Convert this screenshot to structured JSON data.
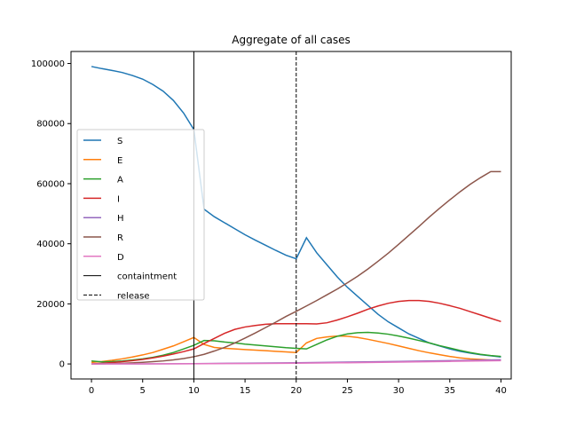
{
  "chart_data": {
    "type": "line",
    "title": "Aggregate of all cases",
    "xlabel": "",
    "ylabel": "",
    "xlim": [
      -2,
      41
    ],
    "ylim": [
      -5000,
      104000
    ],
    "xticks": [
      0,
      5,
      10,
      15,
      20,
      25,
      30,
      35,
      40
    ],
    "yticks": [
      0,
      20000,
      40000,
      60000,
      80000,
      100000
    ],
    "grid": false,
    "legend": "center-left",
    "series": [
      {
        "name": "S",
        "color": "#1f77b4",
        "style": "solid",
        "x": [
          0,
          1,
          2,
          3,
          4,
          5,
          6,
          7,
          8,
          9,
          10,
          11,
          12,
          13,
          14,
          15,
          16,
          17,
          18,
          19,
          20,
          21,
          22,
          23,
          24,
          25,
          26,
          27,
          28,
          29,
          30,
          31,
          32,
          33,
          34,
          35,
          36,
          37,
          38,
          39,
          40
        ],
        "y": [
          99000,
          98300,
          97700,
          97000,
          96000,
          94800,
          93000,
          90800,
          87700,
          83500,
          78000,
          51500,
          49000,
          47000,
          45000,
          43000,
          41200,
          39500,
          37800,
          36200,
          35000,
          42000,
          37000,
          33000,
          29000,
          25500,
          22500,
          19500,
          16500,
          14000,
          12000,
          10000,
          8500,
          7000,
          6000,
          5000,
          4200,
          3600,
          3100,
          2700,
          2300
        ]
      },
      {
        "name": "E",
        "color": "#ff7f0e",
        "style": "solid",
        "x": [
          0,
          1,
          2,
          3,
          4,
          5,
          6,
          7,
          8,
          9,
          10,
          11,
          12,
          13,
          14,
          15,
          16,
          17,
          18,
          19,
          20,
          21,
          22,
          23,
          24,
          25,
          26,
          27,
          28,
          29,
          30,
          31,
          32,
          33,
          34,
          35,
          36,
          37,
          38,
          39,
          40
        ],
        "y": [
          500,
          800,
          1200,
          1700,
          2300,
          3000,
          3800,
          4900,
          6000,
          7400,
          8800,
          6500,
          5500,
          5200,
          5000,
          4800,
          4600,
          4400,
          4200,
          4000,
          3800,
          7000,
          8500,
          9000,
          9300,
          9200,
          8800,
          8200,
          7500,
          6800,
          6000,
          5200,
          4400,
          3700,
          3100,
          2500,
          2000,
          1700,
          1500,
          1300,
          1200
        ]
      },
      {
        "name": "A",
        "color": "#2ca02c",
        "style": "solid",
        "x": [
          0,
          1,
          2,
          3,
          4,
          5,
          6,
          7,
          8,
          9,
          10,
          11,
          12,
          13,
          14,
          15,
          16,
          17,
          18,
          19,
          20,
          21,
          22,
          23,
          24,
          25,
          26,
          27,
          28,
          29,
          30,
          31,
          32,
          33,
          34,
          35,
          36,
          37,
          38,
          39,
          40
        ],
        "y": [
          1000,
          700,
          800,
          1000,
          1300,
          1700,
          2200,
          2900,
          3800,
          5000,
          6200,
          7800,
          7700,
          7300,
          7000,
          6600,
          6300,
          6000,
          5700,
          5400,
          5200,
          5000,
          6500,
          8000,
          9200,
          10000,
          10400,
          10500,
          10300,
          9900,
          9300,
          8600,
          7800,
          7000,
          6100,
          5300,
          4500,
          3800,
          3200,
          2800,
          2500
        ]
      },
      {
        "name": "I",
        "color": "#d62728",
        "style": "solid",
        "x": [
          0,
          1,
          2,
          3,
          4,
          5,
          6,
          7,
          8,
          9,
          10,
          11,
          12,
          13,
          14,
          15,
          16,
          17,
          18,
          19,
          20,
          21,
          22,
          23,
          24,
          25,
          26,
          27,
          28,
          29,
          30,
          31,
          32,
          33,
          34,
          35,
          36,
          37,
          38,
          39,
          40
        ],
        "y": [
          0,
          200,
          450,
          750,
          1100,
          1500,
          2000,
          2600,
          3300,
          4100,
          5000,
          6800,
          8500,
          10200,
          11500,
          12300,
          12800,
          13200,
          13400,
          13400,
          13400,
          13400,
          13300,
          13700,
          14600,
          15700,
          16900,
          18200,
          19300,
          20200,
          20800,
          21100,
          21100,
          20800,
          20200,
          19400,
          18500,
          17400,
          16300,
          15200,
          14100
        ]
      },
      {
        "name": "H",
        "color": "#9467bd",
        "style": "solid",
        "x": [
          0,
          5,
          10,
          15,
          20,
          25,
          30,
          35,
          40
        ],
        "y": [
          0,
          40,
          100,
          250,
          400,
          600,
          850,
          1100,
          1400
        ]
      },
      {
        "name": "R",
        "color": "#8c564b",
        "style": "solid",
        "x": [
          0,
          1,
          2,
          3,
          4,
          5,
          6,
          7,
          8,
          9,
          10,
          11,
          12,
          13,
          14,
          15,
          16,
          17,
          18,
          19,
          20,
          21,
          22,
          23,
          24,
          25,
          26,
          27,
          28,
          29,
          30,
          31,
          32,
          33,
          34,
          35,
          36,
          37,
          38,
          39,
          40
        ],
        "y": [
          0,
          50,
          120,
          220,
          350,
          520,
          750,
          1000,
          1350,
          1800,
          2400,
          3200,
          4300,
          5500,
          7000,
          8600,
          10300,
          12100,
          13900,
          15800,
          17500,
          19300,
          21100,
          23000,
          24900,
          27000,
          29200,
          31600,
          34200,
          36900,
          39800,
          42800,
          45800,
          48900,
          51800,
          54600,
          57300,
          59800,
          62000,
          64000,
          64000
        ]
      },
      {
        "name": "D",
        "color": "#e377c2",
        "style": "solid",
        "x": [
          0,
          5,
          10,
          15,
          20,
          25,
          30,
          35,
          40
        ],
        "y": [
          0,
          20,
          60,
          150,
          250,
          400,
          600,
          850,
          1100
        ]
      },
      {
        "name": "containtment",
        "color": "#000000",
        "style": "solid",
        "vline": 10
      },
      {
        "name": "release",
        "color": "#000000",
        "style": "dashed",
        "vline": 20
      }
    ]
  }
}
